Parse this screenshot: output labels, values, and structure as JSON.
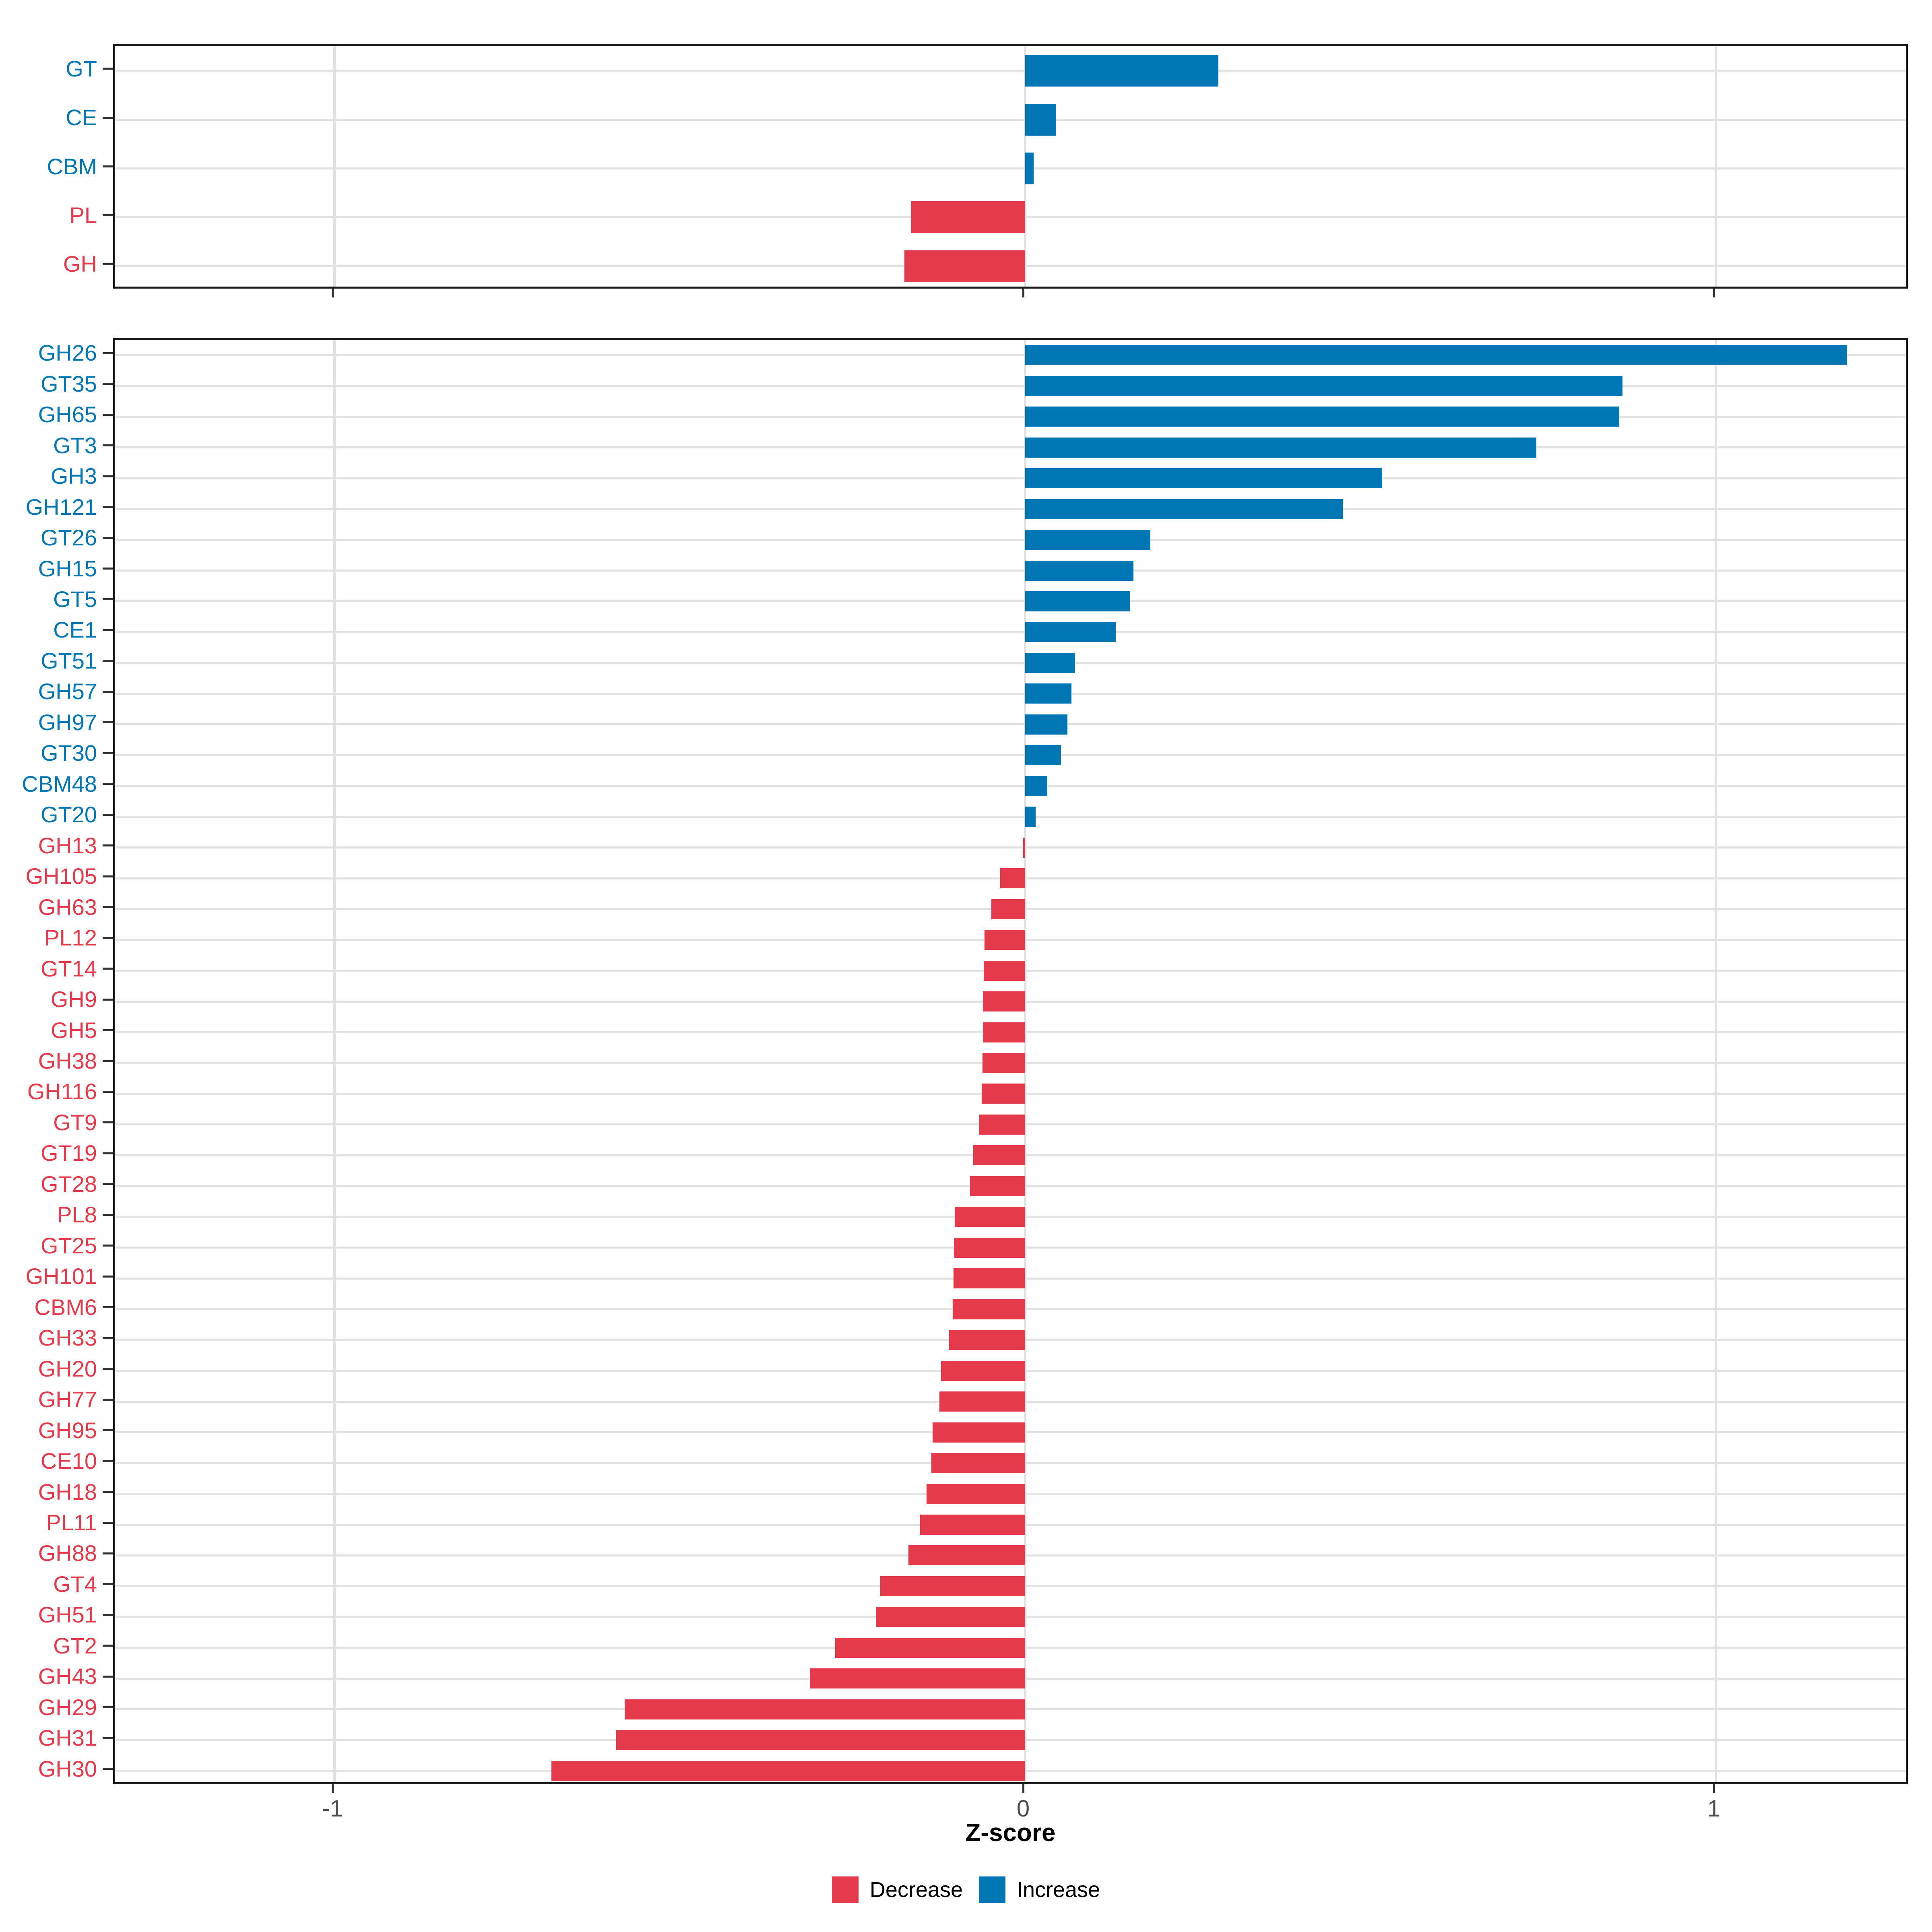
{
  "axis": {
    "xlabel": "Z-score",
    "xtick_labels": [
      "-1",
      "0",
      "1"
    ],
    "xtick_values": [
      -1,
      0,
      1
    ]
  },
  "legend": {
    "items": [
      {
        "label": "Decrease",
        "color": "#E43A4C"
      },
      {
        "label": "Increase",
        "color": "#0077B5"
      }
    ]
  },
  "colors": {
    "decrease": "#E43A4C",
    "increase": "#0077B5",
    "grid": "#E2E2E2",
    "panel_border": "#1A1A1A",
    "axis_tick": "#333333",
    "axis_text": "#4D4D4D",
    "background": "#FFFFFF"
  },
  "chart_data": [
    {
      "type": "bar",
      "orientation": "horizontal",
      "panel": "cazyme-classes",
      "title": "",
      "xlabel": "Z-score",
      "xlim": [
        -1.32,
        1.28
      ],
      "xticks": [
        -1,
        0,
        1
      ],
      "grid": true,
      "categories": [
        "GT",
        "CE",
        "CBM",
        "PL",
        "GH"
      ],
      "values": [
        0.28,
        0.045,
        0.012,
        -0.165,
        -0.175
      ],
      "groups": [
        "Increase",
        "Increase",
        "Increase",
        "Decrease",
        "Decrease"
      ]
    },
    {
      "type": "bar",
      "orientation": "horizontal",
      "panel": "cazyme-families",
      "title": "",
      "xlabel": "Z-score",
      "xlim": [
        -1.32,
        1.28
      ],
      "xticks": [
        -1,
        0,
        1
      ],
      "grid": true,
      "legend_position": "bottom",
      "categories": [
        "GH26",
        "GT35",
        "GH65",
        "GT3",
        "GH3",
        "GH121",
        "GT26",
        "GH15",
        "GT5",
        "CE1",
        "GT51",
        "GH57",
        "GH97",
        "GT30",
        "CBM48",
        "GT20",
        "GH13",
        "GH105",
        "GH63",
        "PL12",
        "GT14",
        "GH9",
        "GH5",
        "GH38",
        "GH116",
        "GT9",
        "GT19",
        "GT28",
        "PL8",
        "GT25",
        "GH101",
        "CBM6",
        "GH33",
        "GH20",
        "GH77",
        "GH95",
        "CE10",
        "GH18",
        "PL11",
        "GH88",
        "GT4",
        "GH51",
        "GT2",
        "GH43",
        "GH29",
        "GH31",
        "GH30"
      ],
      "values": [
        1.19,
        0.865,
        0.86,
        0.74,
        0.517,
        0.46,
        0.181,
        0.157,
        0.152,
        0.131,
        0.072,
        0.067,
        0.061,
        0.052,
        0.032,
        0.015,
        -0.003,
        -0.036,
        -0.049,
        -0.059,
        -0.06,
        -0.061,
        -0.061,
        -0.062,
        -0.063,
        -0.067,
        -0.075,
        -0.08,
        -0.102,
        -0.103,
        -0.104,
        -0.105,
        -0.11,
        -0.122,
        -0.124,
        -0.134,
        -0.136,
        -0.143,
        -0.152,
        -0.169,
        -0.21,
        -0.216,
        -0.275,
        -0.312,
        -0.58,
        -0.592,
        -0.686
      ],
      "groups": [
        "Increase",
        "Increase",
        "Increase",
        "Increase",
        "Increase",
        "Increase",
        "Increase",
        "Increase",
        "Increase",
        "Increase",
        "Increase",
        "Increase",
        "Increase",
        "Increase",
        "Increase",
        "Increase",
        "Decrease",
        "Decrease",
        "Decrease",
        "Decrease",
        "Decrease",
        "Decrease",
        "Decrease",
        "Decrease",
        "Decrease",
        "Decrease",
        "Decrease",
        "Decrease",
        "Decrease",
        "Decrease",
        "Decrease",
        "Decrease",
        "Decrease",
        "Decrease",
        "Decrease",
        "Decrease",
        "Decrease",
        "Decrease",
        "Decrease",
        "Decrease",
        "Decrease",
        "Decrease",
        "Decrease",
        "Decrease",
        "Decrease",
        "Decrease",
        "Decrease"
      ]
    }
  ]
}
